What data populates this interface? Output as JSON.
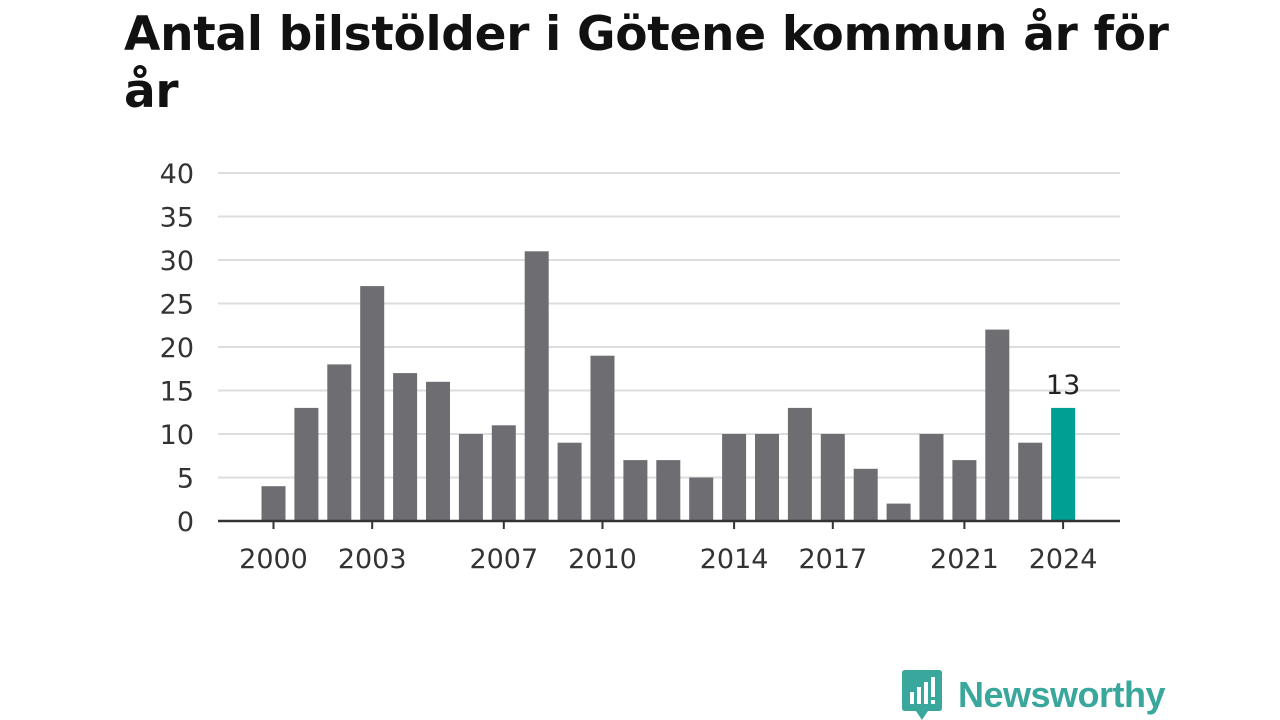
{
  "chart_data": {
    "type": "bar",
    "title": "Antal bilstölder i Götene kommun år för år",
    "x": [
      2000,
      2001,
      2002,
      2003,
      2004,
      2005,
      2006,
      2007,
      2008,
      2009,
      2010,
      2011,
      2012,
      2013,
      2014,
      2015,
      2016,
      2017,
      2018,
      2019,
      2020,
      2021,
      2022,
      2023,
      2024
    ],
    "values": [
      4,
      13,
      18,
      27,
      17,
      16,
      10,
      11,
      31,
      9,
      19,
      7,
      7,
      5,
      10,
      10,
      13,
      10,
      6,
      2,
      10,
      7,
      22,
      9,
      13
    ],
    "x_tick_labels": [
      "2000",
      "2003",
      "2007",
      "2010",
      "2014",
      "2017",
      "2021",
      "2024"
    ],
    "y_ticks": [
      0,
      5,
      10,
      15,
      20,
      25,
      30,
      35,
      40
    ],
    "ylim": [
      0,
      40
    ],
    "grid": true,
    "highlight": {
      "year": 2024,
      "label": "13"
    },
    "colors": {
      "bar": "#6e6d72",
      "highlight": "#009f93",
      "grid": "#dddddd",
      "axis": "#333333"
    }
  },
  "brand": {
    "name": "Newsworthy",
    "color": "#3aa79c"
  }
}
